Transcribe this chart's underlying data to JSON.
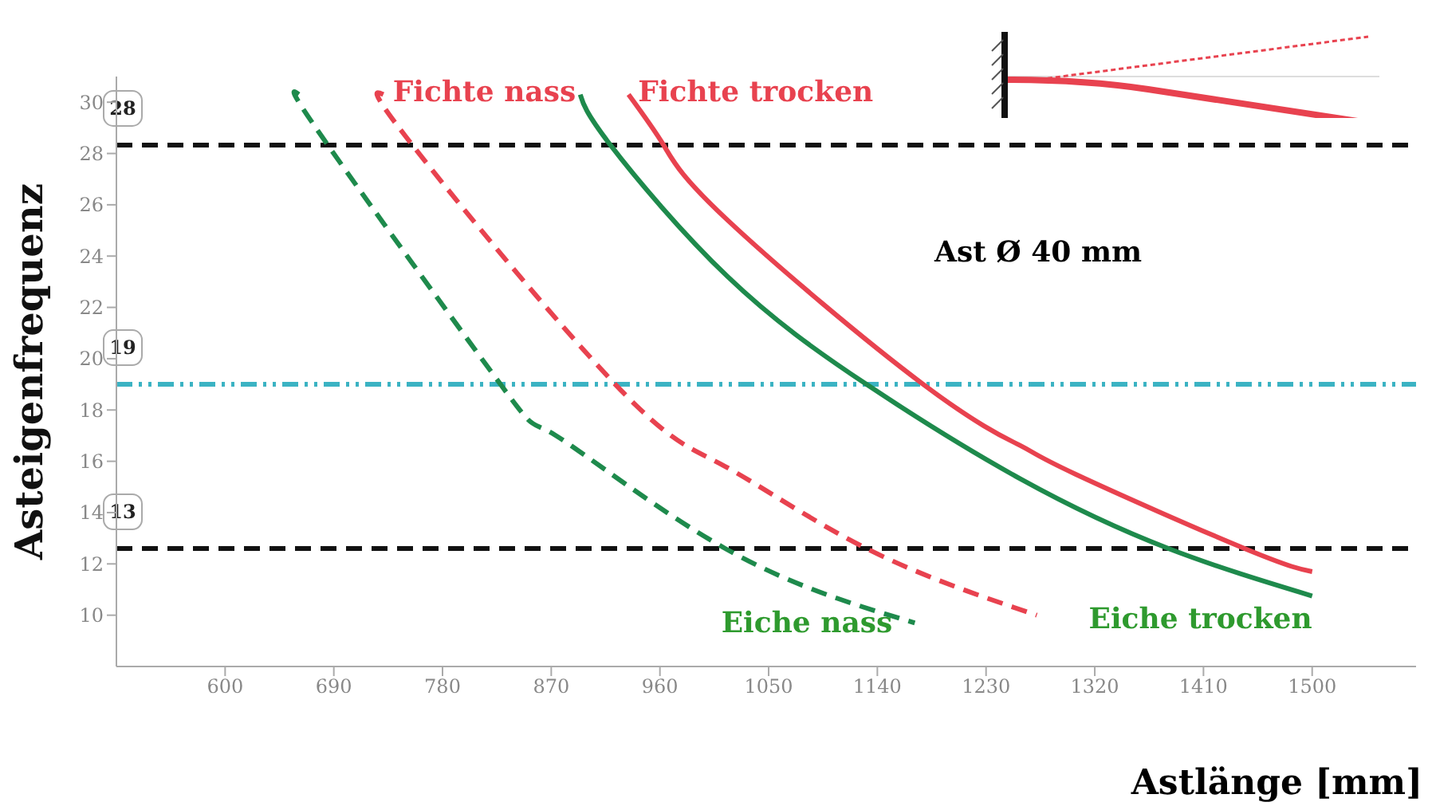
{
  "chart_data": {
    "type": "line",
    "xlabel": "Astlänge [mm]",
    "ylabel": "Asteigenfrequenz",
    "xlim": [
      510,
      1586
    ],
    "xticks": [
      600,
      690,
      780,
      870,
      960,
      1050,
      1140,
      1230,
      1320,
      1410,
      1500
    ],
    "ylim": [
      8,
      31
    ],
    "yticks": [
      10,
      12,
      14,
      16,
      18,
      20,
      22,
      24,
      26,
      28,
      30
    ],
    "marker": "none",
    "series": [
      {
        "name": "Eiche nass",
        "color": "#1e8a4c",
        "line_style": "dashed",
        "x": [
          661,
          685,
          828,
          874,
          1014,
          1171
        ],
        "values": [
          30.3,
          28.33,
          19,
          17,
          12.6,
          9.7
        ]
      },
      {
        "name": "Fichte nass",
        "color": "#e8424f",
        "line_style": "dashed",
        "x": [
          731,
          755,
          923,
          1014,
          1131,
          1272
        ],
        "values": [
          30.3,
          28.33,
          19,
          15.8,
          12.6,
          10
        ]
      },
      {
        "name": "Eiche trocken",
        "color": "#1e8a4c",
        "line_style": "solid",
        "x": [
          894,
          919,
          1016,
          1131,
          1259,
          1381,
          1500
        ],
        "values": [
          30.3,
          28.33,
          23.2,
          19,
          15.3,
          12.6,
          10.75
        ]
      },
      {
        "name": "Fichte trocken",
        "color": "#e8424f",
        "line_style": "solid",
        "x": [
          934,
          963,
          1016,
          1178,
          1259,
          1304,
          1444,
          1500
        ],
        "values": [
          30.3,
          28.33,
          25.4,
          19,
          16.6,
          15.5,
          12.6,
          11.7
        ]
      }
    ],
    "ref_lines": [
      {
        "axis": "y",
        "value": 28.33,
        "label": "28",
        "color": "#111111",
        "line_style": "dashed"
      },
      {
        "axis": "y",
        "value": 19,
        "label": "19",
        "color": "#3bb3c3",
        "line_style": "dashdotdot"
      },
      {
        "axis": "y",
        "value": 12.6,
        "label": "13",
        "color": "#111111",
        "line_style": "dashed"
      }
    ],
    "annotations": [
      "Ast Ø 40 mm"
    ]
  }
}
